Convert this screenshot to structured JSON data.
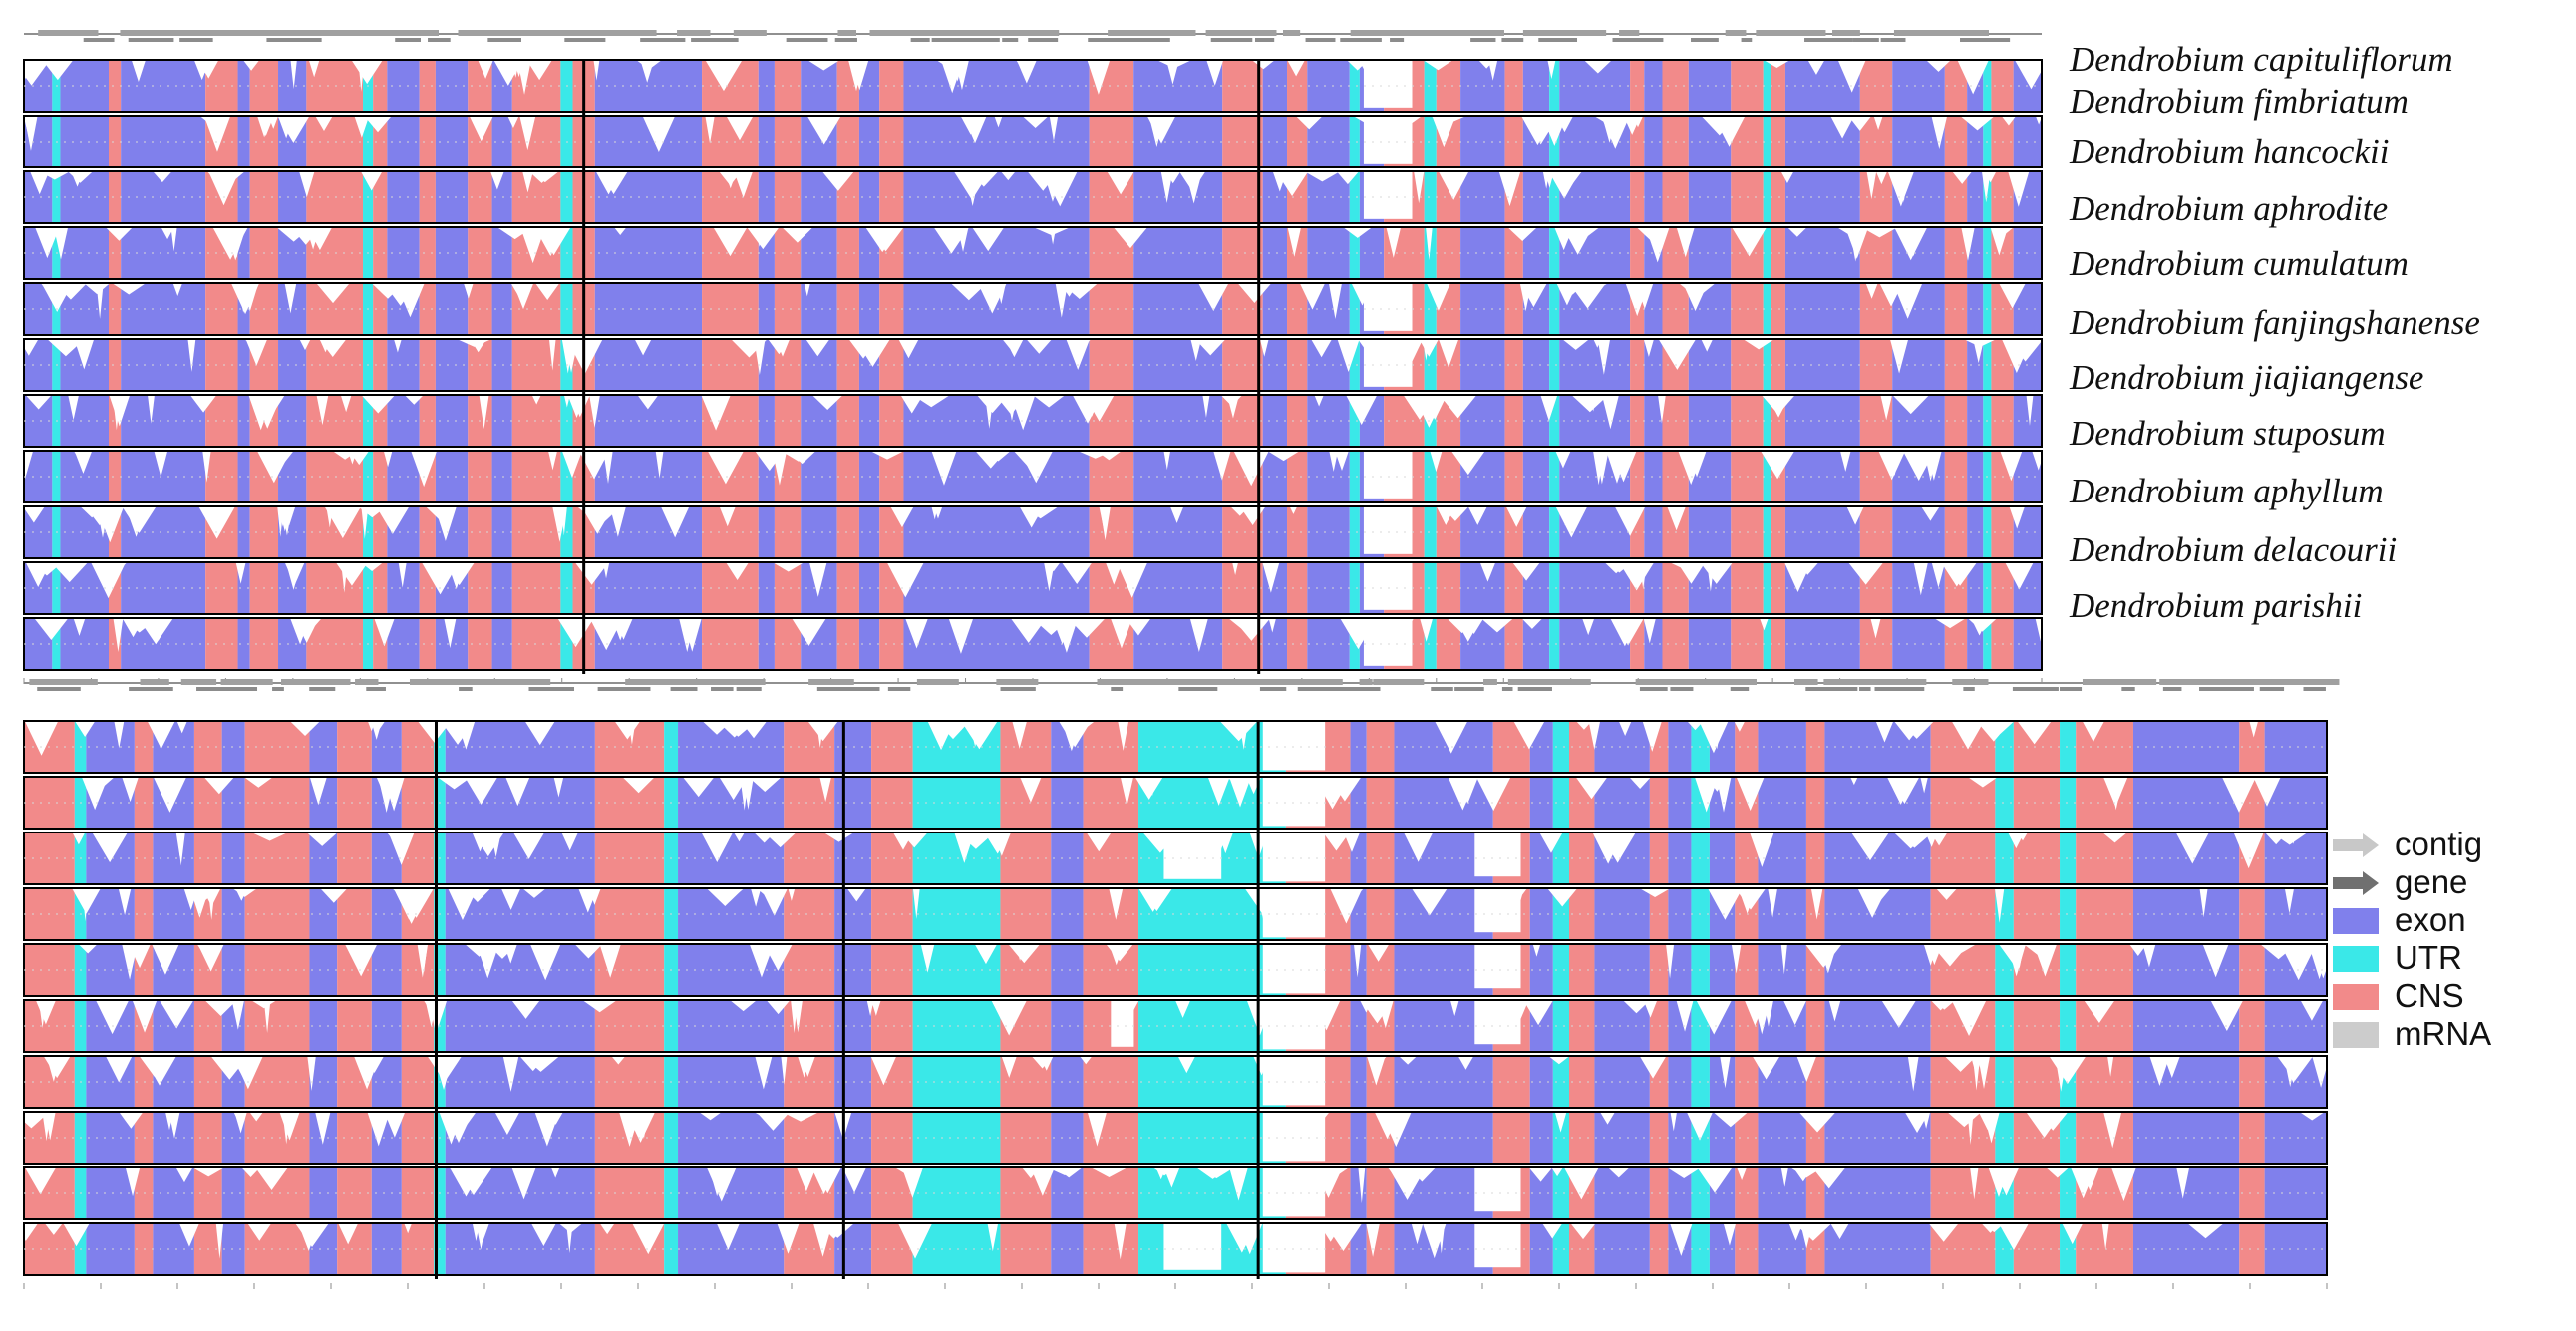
{
  "figure": {
    "species": [
      "Dendrobium capituliflorum",
      "Dendrobium fimbriatum",
      "Dendrobium hancockii",
      "Dendrobium aphrodite",
      "Dendrobium cumulatum",
      "Dendrobium fanjingshanense",
      "Dendrobium jiajiangense",
      "Dendrobium stuposum",
      "Dendrobium aphyllum",
      "Dendrobium delacourii",
      "Dendrobium parishii"
    ],
    "legend": [
      {
        "label": "contig",
        "color": "#c8c8c8",
        "kind": "arrow-light"
      },
      {
        "label": "gene",
        "color": "#707070",
        "kind": "arrow-dark"
      },
      {
        "label": "exon",
        "color": "#8080ec",
        "kind": "box"
      },
      {
        "label": "UTR",
        "color": "#3ae8e8",
        "kind": "box"
      },
      {
        "label": "CNS",
        "color": "#f28a8a",
        "kind": "box"
      },
      {
        "label": "mRNA",
        "color": "#cccccc",
        "kind": "box"
      }
    ],
    "colors": {
      "exon": "#8080ec",
      "utr": "#3ae8e8",
      "cns": "#f28a8a",
      "gap": "#ffffff",
      "border": "#000000"
    },
    "panels": [
      {
        "id": "top",
        "segments": [
          [
            0,
            1.4,
            "E"
          ],
          [
            1.4,
            1.8,
            "U"
          ],
          [
            1.8,
            4.2,
            "E"
          ],
          [
            4.2,
            4.8,
            "C"
          ],
          [
            4.8,
            9,
            "E"
          ],
          [
            9,
            10.6,
            "C"
          ],
          [
            10.6,
            11.2,
            "E"
          ],
          [
            11.2,
            12.6,
            "C"
          ],
          [
            12.6,
            14,
            "E"
          ],
          [
            14,
            16.8,
            "C"
          ],
          [
            16.8,
            17.3,
            "U"
          ],
          [
            17.3,
            18,
            "C"
          ],
          [
            18,
            19.6,
            "E"
          ],
          [
            19.6,
            20.4,
            "C"
          ],
          [
            20.4,
            22,
            "E"
          ],
          [
            22,
            23.2,
            "C"
          ],
          [
            23.2,
            24.2,
            "E"
          ],
          [
            24.2,
            26.6,
            "C"
          ],
          [
            26.6,
            27.2,
            "U"
          ],
          [
            27.2,
            28.3,
            "C"
          ],
          [
            28.3,
            33.6,
            "E"
          ],
          [
            33.6,
            36.4,
            "C"
          ],
          [
            36.4,
            37.2,
            "E"
          ],
          [
            37.2,
            38.5,
            "C"
          ],
          [
            38.5,
            40.3,
            "E"
          ],
          [
            40.3,
            41.4,
            "C"
          ],
          [
            41.4,
            42.4,
            "E"
          ],
          [
            42.4,
            43.6,
            "C"
          ],
          [
            43.6,
            52.8,
            "E"
          ],
          [
            52.8,
            55,
            "C"
          ],
          [
            55,
            59.4,
            "E"
          ],
          [
            59.4,
            61.4,
            "C"
          ],
          [
            61.4,
            62.6,
            "E"
          ],
          [
            62.6,
            63.6,
            "C"
          ],
          [
            63.6,
            65.7,
            "E"
          ],
          [
            65.7,
            66.2,
            "U"
          ],
          [
            66.2,
            67.4,
            "E"
          ],
          [
            67.4,
            69.4,
            "C"
          ],
          [
            69.4,
            70,
            "U"
          ],
          [
            70,
            71.2,
            "C"
          ],
          [
            71.2,
            73.4,
            "E"
          ],
          [
            73.4,
            74.3,
            "C"
          ],
          [
            74.3,
            75.6,
            "E"
          ],
          [
            75.6,
            76.1,
            "U"
          ],
          [
            76.1,
            79.6,
            "E"
          ],
          [
            79.6,
            80.3,
            "C"
          ],
          [
            80.3,
            81.2,
            "E"
          ],
          [
            81.2,
            82.5,
            "C"
          ],
          [
            82.5,
            84.6,
            "E"
          ],
          [
            84.6,
            86.2,
            "C"
          ],
          [
            86.2,
            86.6,
            "U"
          ],
          [
            86.6,
            87.3,
            "C"
          ],
          [
            87.3,
            91,
            "E"
          ],
          [
            91,
            92.6,
            "C"
          ],
          [
            92.6,
            95.2,
            "E"
          ],
          [
            95.2,
            96.3,
            "C"
          ],
          [
            96.3,
            97.1,
            "E"
          ],
          [
            97.1,
            97.5,
            "U"
          ],
          [
            97.5,
            98.6,
            "C"
          ],
          [
            98.6,
            100,
            "E"
          ]
        ],
        "gaps": [
          {
            "start": 66.4,
            "end": 68.8,
            "depth": 0.92,
            "rows": [
              0,
              1,
              2,
              4,
              5,
              7,
              8,
              9,
              10
            ]
          }
        ]
      },
      {
        "id": "bottom",
        "segments": [
          [
            0,
            2.2,
            "C"
          ],
          [
            2.2,
            2.7,
            "U"
          ],
          [
            2.7,
            4.8,
            "E"
          ],
          [
            4.8,
            5.6,
            "C"
          ],
          [
            5.6,
            7.4,
            "E"
          ],
          [
            7.4,
            8.6,
            "C"
          ],
          [
            8.6,
            9.6,
            "E"
          ],
          [
            9.6,
            12.4,
            "C"
          ],
          [
            12.4,
            13.6,
            "E"
          ],
          [
            13.6,
            15.1,
            "C"
          ],
          [
            15.1,
            16.4,
            "E"
          ],
          [
            16.4,
            17.8,
            "C"
          ],
          [
            17.8,
            18.3,
            "U"
          ],
          [
            18.3,
            24.8,
            "E"
          ],
          [
            24.8,
            27.8,
            "C"
          ],
          [
            27.8,
            28.4,
            "U"
          ],
          [
            28.4,
            33,
            "E"
          ],
          [
            33,
            35.2,
            "C"
          ],
          [
            35.2,
            36.8,
            "E"
          ],
          [
            36.8,
            38.6,
            "C"
          ],
          [
            38.6,
            42.4,
            "U"
          ],
          [
            42.4,
            44.6,
            "C"
          ],
          [
            44.6,
            46,
            "E"
          ],
          [
            46,
            48.4,
            "C"
          ],
          [
            48.4,
            54.8,
            "U"
          ],
          [
            54.8,
            57.6,
            "C"
          ],
          [
            57.6,
            58.3,
            "E"
          ],
          [
            58.3,
            59.5,
            "C"
          ],
          [
            59.5,
            63.8,
            "E"
          ],
          [
            63.8,
            65.4,
            "C"
          ],
          [
            65.4,
            66.4,
            "E"
          ],
          [
            66.4,
            67.1,
            "U"
          ],
          [
            67.1,
            68.2,
            "C"
          ],
          [
            68.2,
            70.6,
            "E"
          ],
          [
            70.6,
            71.4,
            "C"
          ],
          [
            71.4,
            72.4,
            "E"
          ],
          [
            72.4,
            73.2,
            "U"
          ],
          [
            73.2,
            74.3,
            "E"
          ],
          [
            74.3,
            75.3,
            "C"
          ],
          [
            75.3,
            77.4,
            "E"
          ],
          [
            77.4,
            78.2,
            "C"
          ],
          [
            78.2,
            82.8,
            "E"
          ],
          [
            82.8,
            85.6,
            "C"
          ],
          [
            85.6,
            86.4,
            "U"
          ],
          [
            86.4,
            88.4,
            "C"
          ],
          [
            88.4,
            89.1,
            "U"
          ],
          [
            89.1,
            91.6,
            "C"
          ],
          [
            91.6,
            96.2,
            "E"
          ],
          [
            96.2,
            97.3,
            "C"
          ],
          [
            97.3,
            100,
            "E"
          ]
        ],
        "gaps": [
          {
            "start": 49.5,
            "end": 52.0,
            "depth": 0.9,
            "rows": [
              2,
              9
            ]
          },
          {
            "start": 53.8,
            "end": 56.5,
            "depth": 0.95,
            "rows": [
              0,
              1,
              2,
              3,
              4,
              5,
              6,
              7,
              8,
              9
            ]
          },
          {
            "start": 63.0,
            "end": 65.0,
            "depth": 0.85,
            "rows": [
              2,
              3,
              4,
              5,
              8,
              9
            ]
          },
          {
            "start": 47.2,
            "end": 48.2,
            "depth": 0.9,
            "rows": [
              5
            ]
          }
        ]
      }
    ]
  }
}
